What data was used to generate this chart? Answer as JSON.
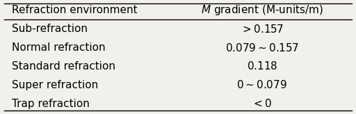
{
  "col1_header": "Refraction environment",
  "col2_header": "$M$ gradient (M-units/m)",
  "rows": [
    [
      "Sub-refraction",
      "$> 0.157$"
    ],
    [
      "Normal refraction",
      "$0.079 \\sim 0.157$"
    ],
    [
      "Standard refraction",
      "$0.118$"
    ],
    [
      "Super refraction",
      "$0 \\sim 0.079$"
    ],
    [
      "Trap refraction",
      "$< 0$"
    ]
  ],
  "bg_color": "#f2f0eb",
  "header_line_color": "#000000",
  "text_color": "#000000",
  "font_size": 11,
  "header_font_size": 11
}
